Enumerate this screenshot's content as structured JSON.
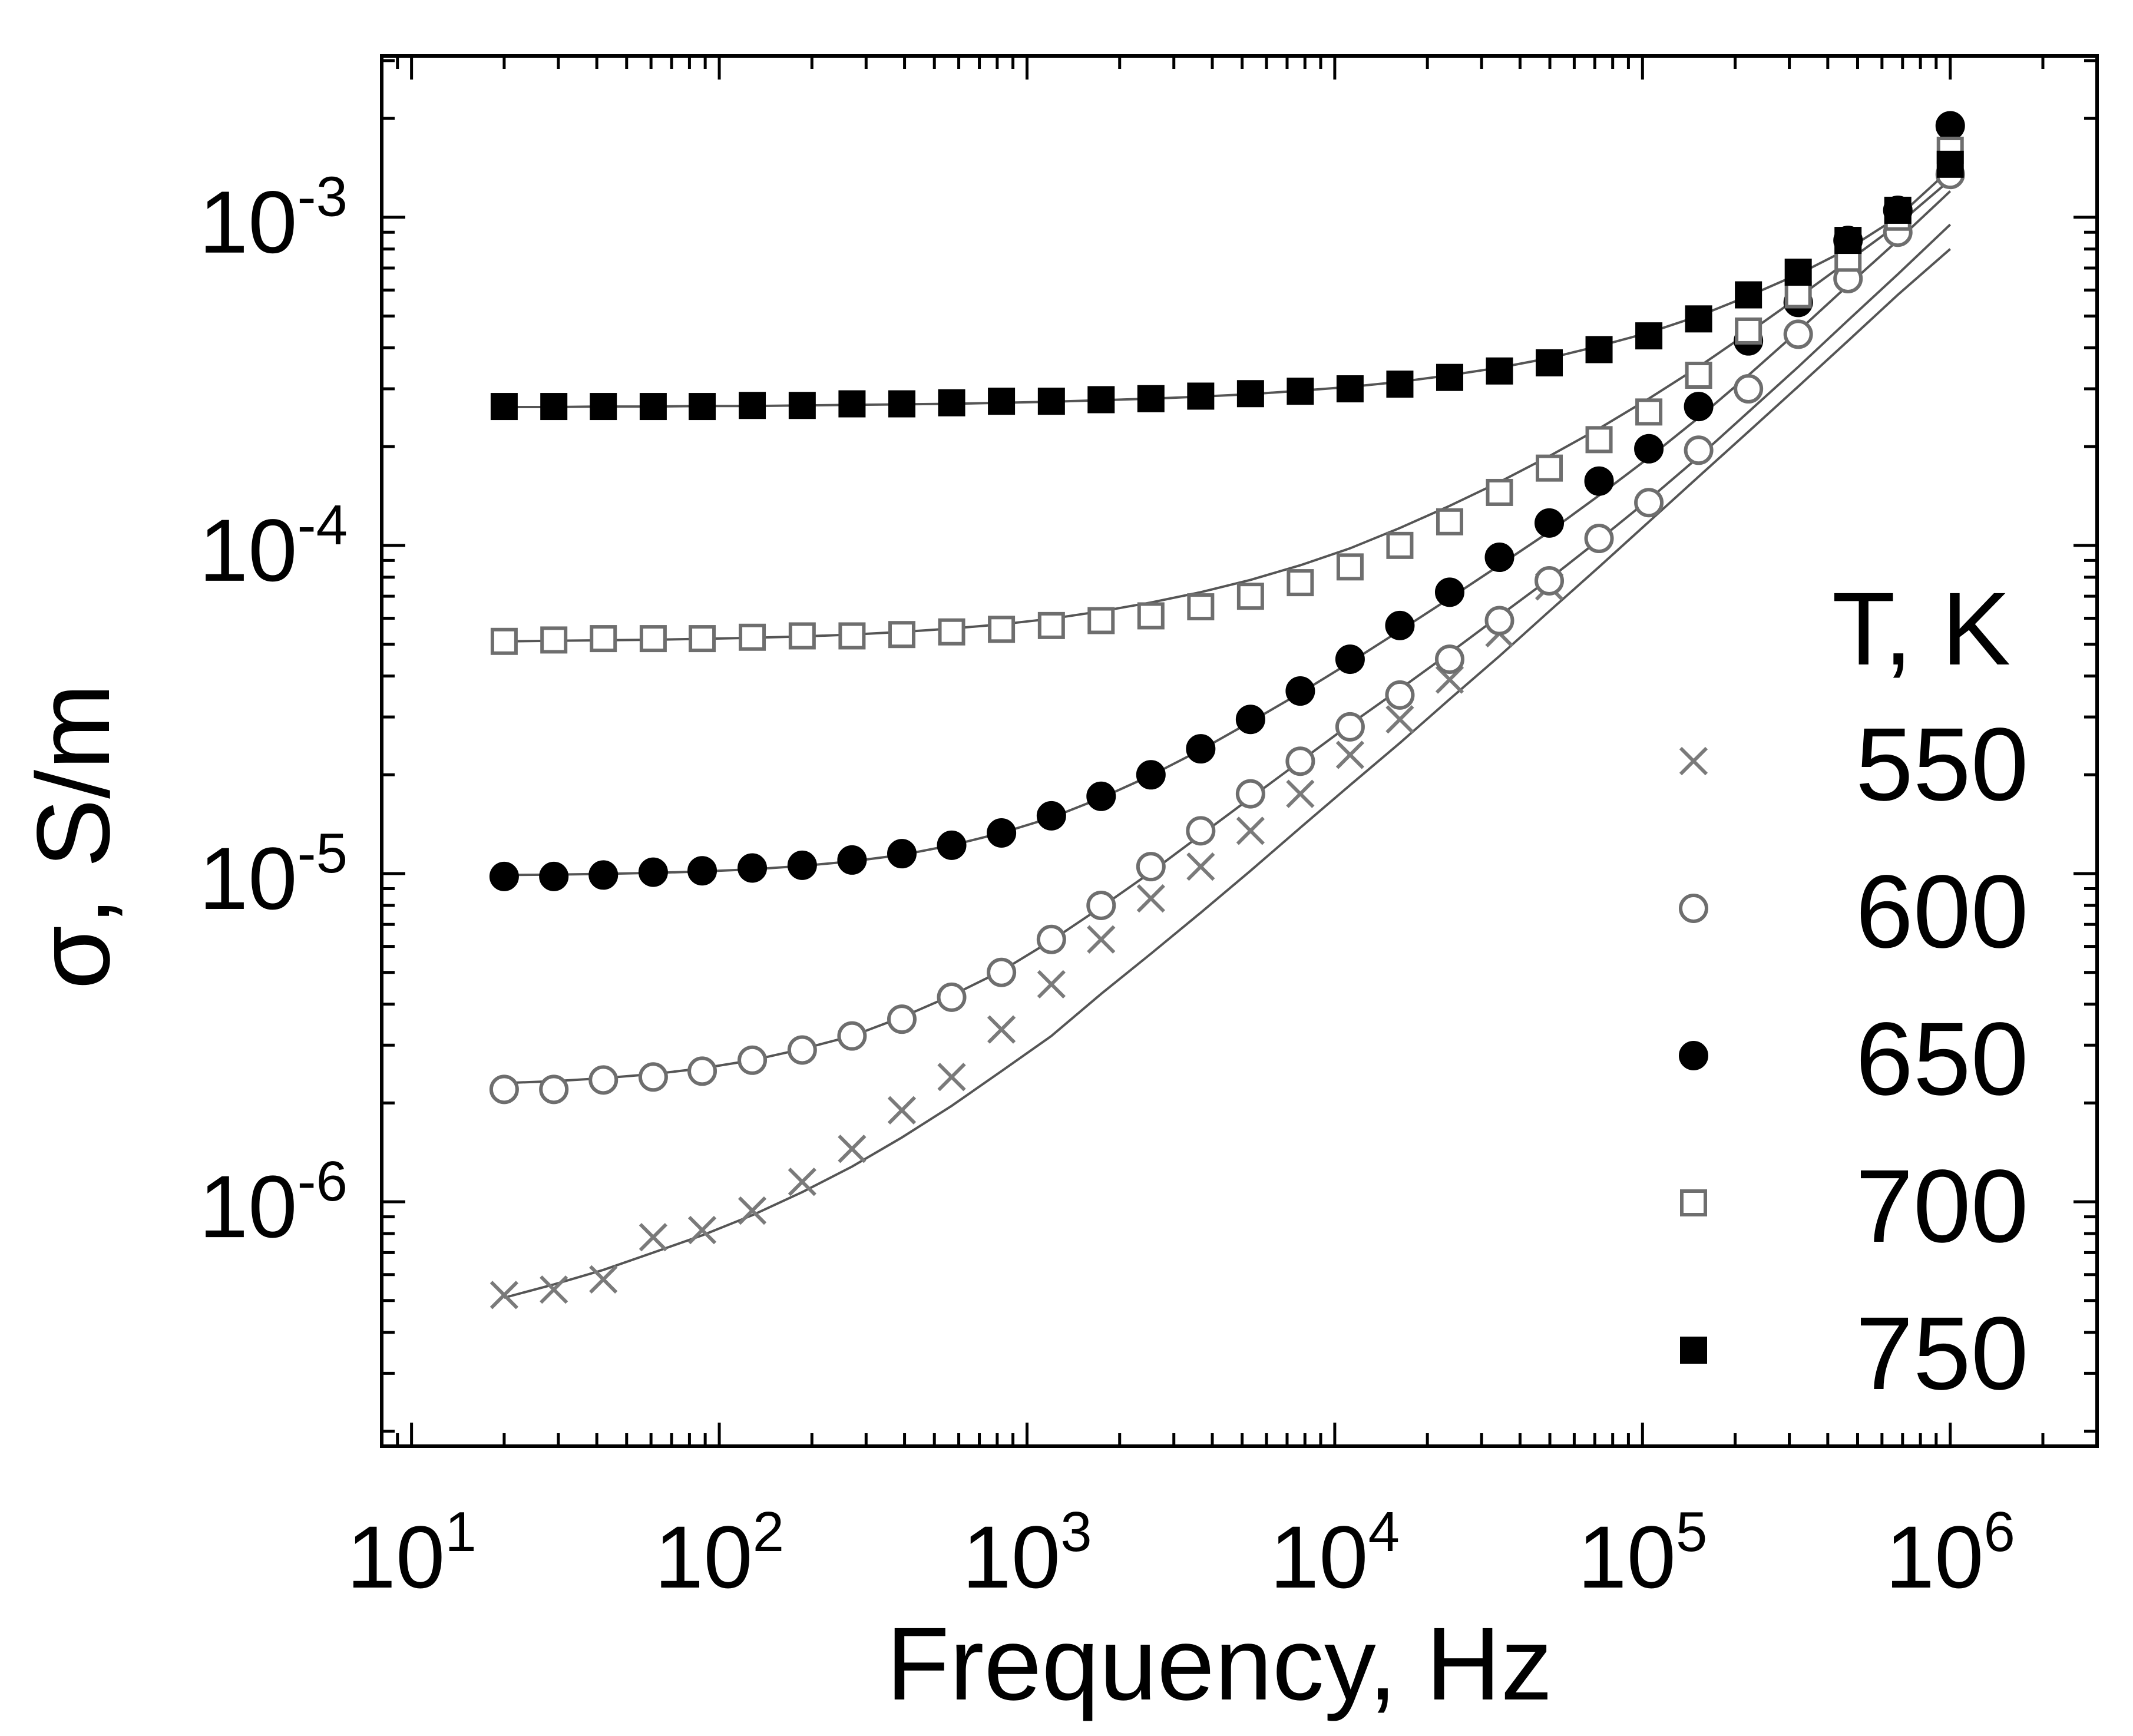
{
  "chart_data": {
    "type": "scatter",
    "title": "",
    "xlabel": "Frequency, Hz",
    "ylabel": "σ, S/m",
    "xscale": "log",
    "yscale": "log",
    "xlim": [
      8,
      3000000
    ],
    "ylim": [
      1.8e-07,
      0.0031
    ],
    "grid": false,
    "legend_title": "T, K",
    "legend_position": "right",
    "x_ticks": [
      {
        "value": 10,
        "base": "10",
        "exp": "1"
      },
      {
        "value": 100,
        "base": "10",
        "exp": "2"
      },
      {
        "value": 1000,
        "base": "10",
        "exp": "3"
      },
      {
        "value": 10000,
        "base": "10",
        "exp": "4"
      },
      {
        "value": 100000,
        "base": "10",
        "exp": "5"
      },
      {
        "value": 1000000,
        "base": "10",
        "exp": "6"
      }
    ],
    "y_ticks": [
      {
        "value": 1e-06,
        "base": "10",
        "exp": "-6"
      },
      {
        "value": 1e-05,
        "base": "10",
        "exp": "-5"
      },
      {
        "value": 0.0001,
        "base": "10",
        "exp": "-4"
      },
      {
        "value": 0.001,
        "base": "10",
        "exp": "-3"
      }
    ],
    "x": [
      20,
      29,
      42,
      61,
      88,
      128,
      186,
      270,
      392,
      569,
      826,
      1200,
      1741,
      2527,
      3668,
      5324,
      7727,
      11215,
      16278,
      23627,
      34293,
      49775,
      72245,
      104860,
      152201,
      220915,
      320650,
      465410,
      675521,
      1000000
    ],
    "series": [
      {
        "name": "550",
        "marker": "cross",
        "color": "#7a7a7a",
        "values": [
          5.2e-07,
          5.4e-07,
          5.8e-07,
          7.8e-07,
          8.2e-07,
          9.4e-07,
          1.15e-06,
          1.45e-06,
          1.9e-06,
          2.4e-06,
          3.35e-06,
          4.6e-06,
          6.3e-06,
          8.4e-06,
          1.05e-05,
          1.35e-05,
          1.75e-05,
          2.3e-05,
          2.95e-05,
          3.9e-05,
          5.4e-05,
          7.5e-05,
          null,
          null,
          null,
          null,
          null,
          null,
          null,
          null
        ],
        "fit": [
          5.1e-07,
          5.6e-07,
          6.2e-07,
          7e-07,
          7.9e-07,
          9.1e-07,
          1.07e-06,
          1.28e-06,
          1.57e-06,
          1.96e-06,
          2.5e-06,
          3.2e-06,
          4.3e-06,
          5.7e-06,
          7.6e-06,
          1.02e-05,
          1.38e-05,
          1.86e-05,
          2.5e-05,
          3.4e-05,
          4.6e-05,
          6.3e-05,
          8.6e-05,
          0.000118,
          0.000162,
          0.000222,
          0.000305,
          0.00042,
          0.00058,
          0.0008
        ]
      },
      {
        "name": "600",
        "marker": "open-circle",
        "color": "#6e6e6e",
        "values": [
          2.2e-06,
          2.2e-06,
          2.35e-06,
          2.4e-06,
          2.5e-06,
          2.7e-06,
          2.9e-06,
          3.2e-06,
          3.6e-06,
          4.2e-06,
          5e-06,
          6.3e-06,
          8e-06,
          1.05e-05,
          1.35e-05,
          1.75e-05,
          2.2e-05,
          2.8e-05,
          3.5e-05,
          4.5e-05,
          5.9e-05,
          7.8e-05,
          0.000105,
          0.000135,
          0.000195,
          0.0003,
          0.00044,
          0.00065,
          0.0009,
          0.00135
        ],
        "fit": [
          2.3e-06,
          2.33e-06,
          2.38e-06,
          2.45e-06,
          2.55e-06,
          2.7e-06,
          2.92e-06,
          3.2e-06,
          3.65e-06,
          4.25e-06,
          5.05e-06,
          6.25e-06,
          7.9e-06,
          1.01e-05,
          1.31e-05,
          1.7e-05,
          2.2e-05,
          2.85e-05,
          3.65e-05,
          4.7e-05,
          6.1e-05,
          7.9e-05,
          0.000104,
          0.000138,
          0.000186,
          0.000255,
          0.00035,
          0.000485,
          0.00067,
          0.00095
        ]
      },
      {
        "name": "650",
        "marker": "filled-circle",
        "color": "#000000",
        "values": [
          9.8e-06,
          9.8e-06,
          9.9e-06,
          1.01e-05,
          1.02e-05,
          1.04e-05,
          1.06e-05,
          1.1e-05,
          1.15e-05,
          1.22e-05,
          1.33e-05,
          1.5e-05,
          1.72e-05,
          2e-05,
          2.4e-05,
          2.95e-05,
          3.6e-05,
          4.5e-05,
          5.7e-05,
          7.2e-05,
          9.2e-05,
          0.000117,
          0.000157,
          0.000197,
          0.000265,
          0.00042,
          0.00055,
          0.00085,
          0.00105,
          0.0019
        ],
        "fit": [
          9.9e-06,
          9.93e-06,
          9.98e-06,
          1.005e-05,
          1.015e-05,
          1.03e-05,
          1.055e-05,
          1.09e-05,
          1.14e-05,
          1.22e-05,
          1.33e-05,
          1.48e-05,
          1.7e-05,
          1.99e-05,
          2.38e-05,
          2.9e-05,
          3.55e-05,
          4.4e-05,
          5.5e-05,
          6.9e-05,
          8.7e-05,
          0.00011,
          0.000142,
          0.000185,
          0.000245,
          0.00033,
          0.00045,
          0.00062,
          0.00085,
          0.0012
        ]
      },
      {
        "name": "700",
        "marker": "open-square",
        "color": "#6e6e6e",
        "values": [
          5.1e-05,
          5.15e-05,
          5.2e-05,
          5.2e-05,
          5.2e-05,
          5.25e-05,
          5.3e-05,
          5.3e-05,
          5.35e-05,
          5.45e-05,
          5.55e-05,
          5.7e-05,
          5.9e-05,
          6.1e-05,
          6.5e-05,
          7e-05,
          7.7e-05,
          8.6e-05,
          0.0001,
          0.000118,
          0.000145,
          0.000172,
          0.00021,
          0.000255,
          0.00033,
          0.00045,
          0.00058,
          0.00075,
          0.001,
          0.0016
        ],
        "fit": [
          5.1e-05,
          5.12e-05,
          5.14e-05,
          5.16e-05,
          5.19e-05,
          5.23e-05,
          5.28e-05,
          5.35e-05,
          5.45e-05,
          5.58e-05,
          5.75e-05,
          5.98e-05,
          6.3e-05,
          6.7e-05,
          7.2e-05,
          7.85e-05,
          8.7e-05,
          9.8e-05,
          0.000113,
          0.000132,
          0.000156,
          0.000187,
          0.000227,
          0.00028,
          0.00035,
          0.000445,
          0.00057,
          0.000735,
          0.00095,
          0.0013
        ]
      },
      {
        "name": "750",
        "marker": "filled-square",
        "color": "#000000",
        "values": [
          0.000265,
          0.000265,
          0.000265,
          0.000265,
          0.000265,
          0.000267,
          0.000267,
          0.00027,
          0.00027,
          0.000272,
          0.000275,
          0.000275,
          0.000278,
          0.00028,
          0.000285,
          0.00029,
          0.000295,
          0.0003,
          0.00031,
          0.000325,
          0.00034,
          0.00036,
          0.000395,
          0.000435,
          0.00049,
          0.00058,
          0.00068,
          0.00085,
          0.00105,
          0.00145
        ],
        "fit": [
          0.000264,
          0.000264,
          0.000265,
          0.000265,
          0.000266,
          0.000266,
          0.000267,
          0.000268,
          0.000269,
          0.00027,
          0.000272,
          0.000274,
          0.000277,
          0.00028,
          0.000284,
          0.000289,
          0.000296,
          0.000304,
          0.000315,
          0.00033,
          0.000348,
          0.000372,
          0.000405,
          0.000445,
          0.0005,
          0.000575,
          0.00067,
          0.0008,
          0.001,
          0.0014
        ]
      }
    ]
  }
}
